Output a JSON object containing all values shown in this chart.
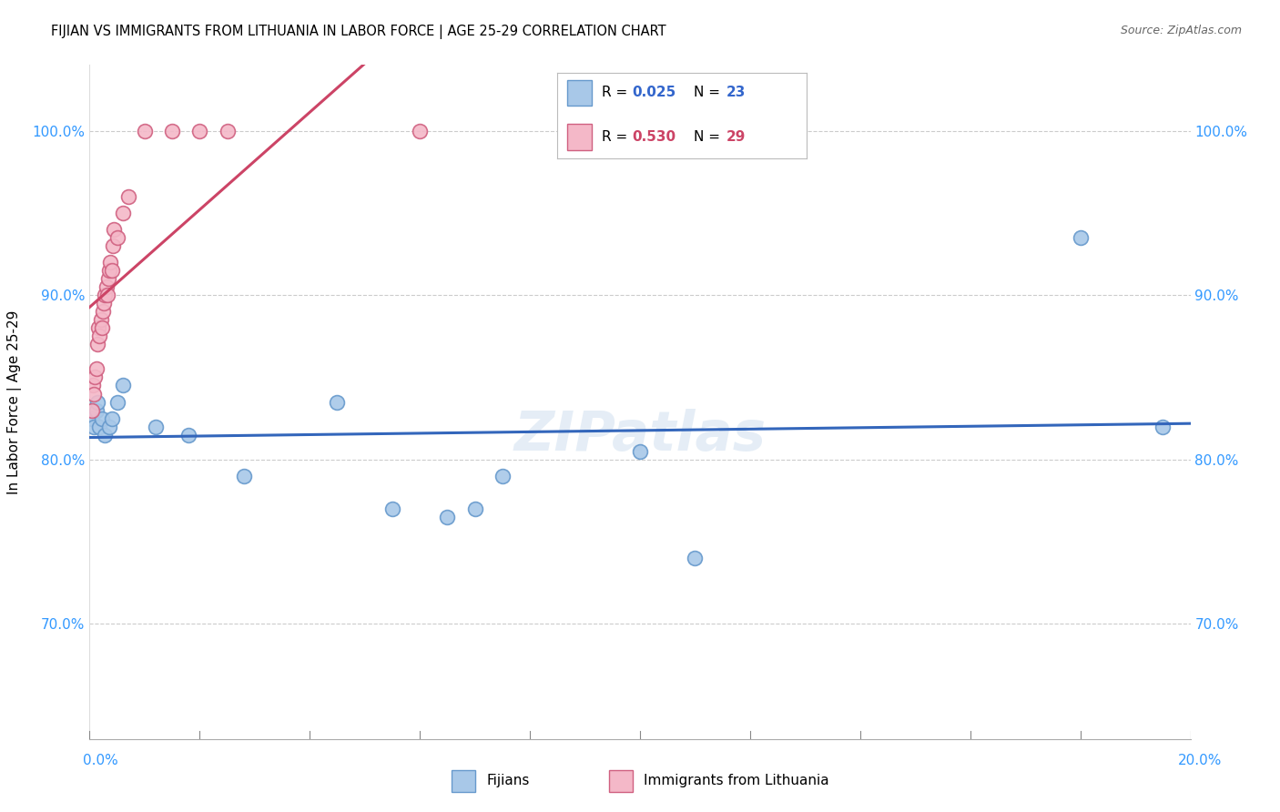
{
  "title": "FIJIAN VS IMMIGRANTS FROM LITHUANIA IN LABOR FORCE | AGE 25-29 CORRELATION CHART",
  "source": "Source: ZipAtlas.com",
  "ylabel": "In Labor Force | Age 25-29",
  "legend1_R": "0.025",
  "legend1_N": "23",
  "legend2_R": "0.530",
  "legend2_N": "29",
  "watermark": "ZIPatlas",
  "blue_scatter_color": "#a8c8e8",
  "blue_scatter_edge": "#6699cc",
  "pink_scatter_color": "#f4b8c8",
  "pink_scatter_edge": "#d06080",
  "blue_line_color": "#3366bb",
  "pink_line_color": "#cc4466",
  "blue_r_color": "#3366cc",
  "pink_r_color": "#cc4466",
  "fijian_x": [
    0.05,
    0.08,
    0.12,
    0.15,
    0.18,
    0.22,
    0.28,
    0.35,
    0.4,
    0.5,
    0.6,
    1.2,
    1.8,
    2.8,
    4.5,
    5.5,
    6.5,
    7.0,
    7.5,
    10.0,
    11.0,
    18.0,
    19.5
  ],
  "fijian_y": [
    82.5,
    82.0,
    83.0,
    83.5,
    82.0,
    82.5,
    81.5,
    82.0,
    82.5,
    83.5,
    84.5,
    82.0,
    81.5,
    79.0,
    83.5,
    77.0,
    76.5,
    77.0,
    79.0,
    80.5,
    74.0,
    93.5,
    82.0
  ],
  "lith_x": [
    0.04,
    0.06,
    0.08,
    0.1,
    0.12,
    0.14,
    0.16,
    0.18,
    0.2,
    0.22,
    0.24,
    0.26,
    0.28,
    0.3,
    0.32,
    0.34,
    0.36,
    0.38,
    0.4,
    0.42,
    0.44,
    0.5,
    0.6,
    0.7,
    1.0,
    1.5,
    2.0,
    2.5,
    6.0
  ],
  "lith_y": [
    83.0,
    84.5,
    84.0,
    85.0,
    85.5,
    87.0,
    88.0,
    87.5,
    88.5,
    88.0,
    89.0,
    89.5,
    90.0,
    90.5,
    90.0,
    91.0,
    91.5,
    92.0,
    91.5,
    93.0,
    94.0,
    93.5,
    95.0,
    96.0,
    100.0,
    100.0,
    100.0,
    100.0,
    100.0
  ],
  "xmin": 0.0,
  "xmax": 20.0,
  "ymin": 63.0,
  "ymax": 104.0,
  "y_ticks": [
    70.0,
    80.0,
    90.0,
    100.0
  ],
  "y_tick_labels": [
    "70.0%",
    "80.0%",
    "90.0%",
    "100.0%"
  ]
}
